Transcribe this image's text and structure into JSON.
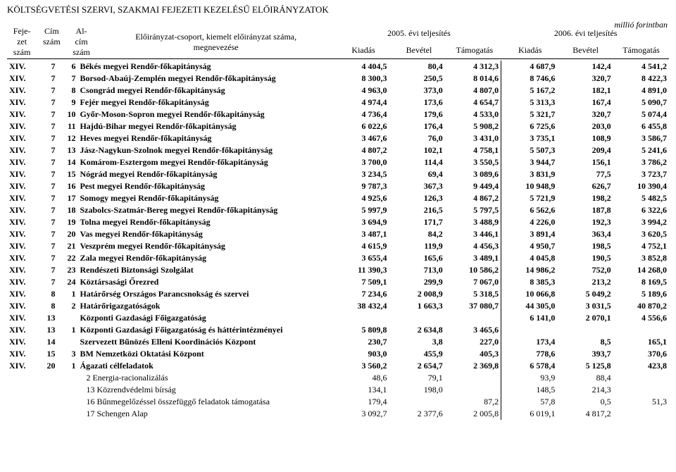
{
  "title": "KÖLTSÉGVETÉSI SZERVI, SZAKMAI FEJEZETI KEZELÉSŰ ELŐIRÁNYZATOK",
  "unit": "millió forintban",
  "head": {
    "fejezet": "Feje-\nzet\nszám",
    "cim": "Cím\nszám",
    "alcim": "Al-\ncím\nszám",
    "name1": "Előirányzat-csoport, kiemelt előirányzat száma,",
    "name2": "megnevezése",
    "y2005": "2005. évi teljesítés",
    "y2006": "2006. évi teljesítés",
    "kiadas": "Kiadás",
    "bevetel": "Bevétel",
    "tamogatas": "Támogatás"
  },
  "rows": [
    {
      "f": "XIV.",
      "c": "7",
      "a": "6",
      "bold": true,
      "name": "Békés megyei Rendőr-főkapitányság",
      "v": [
        "4 404,5",
        "80,4",
        "4 312,3",
        "4 687,9",
        "142,4",
        "4 541,2"
      ]
    },
    {
      "f": "XIV.",
      "c": "7",
      "a": "7",
      "bold": true,
      "name": "Borsod-Abaúj-Zemplén megyei Rendőr-főkapitányság",
      "v": [
        "8 300,3",
        "250,5",
        "8 014,6",
        "8 746,6",
        "320,7",
        "8 422,3"
      ]
    },
    {
      "f": "XIV.",
      "c": "7",
      "a": "8",
      "bold": true,
      "name": "Csongrád megyei Rendőr-főkapitányság",
      "v": [
        "4 963,0",
        "373,0",
        "4 807,0",
        "5 167,2",
        "182,1",
        "4 891,0"
      ]
    },
    {
      "f": "XIV.",
      "c": "7",
      "a": "9",
      "bold": true,
      "name": "Fejér megyei Rendőr-főkapitányság",
      "v": [
        "4 974,4",
        "173,6",
        "4 654,7",
        "5 313,3",
        "167,4",
        "5 090,7"
      ]
    },
    {
      "f": "XIV.",
      "c": "7",
      "a": "10",
      "bold": true,
      "name": "Győr-Moson-Sopron megyei Rendőr-főkapitányság",
      "v": [
        "4 736,4",
        "179,6",
        "4 533,0",
        "5 321,7",
        "320,7",
        "5 074,4"
      ]
    },
    {
      "f": "XIV.",
      "c": "7",
      "a": "11",
      "bold": true,
      "name": "Hajdú-Bihar megyei Rendőr-főkapitányság",
      "v": [
        "6 022,6",
        "176,4",
        "5 908,2",
        "6 725,6",
        "203,0",
        "6 455,8"
      ]
    },
    {
      "f": "XIV.",
      "c": "7",
      "a": "12",
      "bold": true,
      "name": "Heves megyei Rendőr-főkapitányság",
      "v": [
        "3 467,6",
        "76,0",
        "3 431,0",
        "3 735,1",
        "108,9",
        "3 586,7"
      ]
    },
    {
      "f": "XIV.",
      "c": "7",
      "a": "13",
      "bold": true,
      "name": "Jász-Nagykun-Szolnok megyei Rendőr-főkapitányság",
      "v": [
        "4 807,2",
        "102,1",
        "4 758,1",
        "5 507,3",
        "209,4",
        "5 241,6"
      ]
    },
    {
      "f": "XIV.",
      "c": "7",
      "a": "14",
      "bold": true,
      "name": "Komárom-Esztergom megyei Rendőr-főkapitányság",
      "v": [
        "3 700,0",
        "114,4",
        "3 550,5",
        "3 944,7",
        "156,1",
        "3 786,2"
      ]
    },
    {
      "f": "XIV.",
      "c": "7",
      "a": "15",
      "bold": true,
      "name": "Nógrád megyei Rendőr-főkapitányság",
      "v": [
        "3 234,5",
        "69,4",
        "3 089,6",
        "3 831,9",
        "77,5",
        "3 723,7"
      ]
    },
    {
      "f": "XIV.",
      "c": "7",
      "a": "16",
      "bold": true,
      "name": "Pest megyei Rendőr-főkapitányság",
      "v": [
        "9 787,3",
        "367,3",
        "9 449,4",
        "10 948,9",
        "626,7",
        "10 390,4"
      ]
    },
    {
      "f": "XIV.",
      "c": "7",
      "a": "17",
      "bold": true,
      "name": "Somogy megyei Rendőr-főkapitányság",
      "v": [
        "4 925,6",
        "126,3",
        "4 867,2",
        "5 721,9",
        "198,2",
        "5 482,5"
      ]
    },
    {
      "f": "XIV.",
      "c": "7",
      "a": "18",
      "bold": true,
      "name": "Szabolcs-Szatmár-Bereg megyei Rendőr-főkapitányság",
      "v": [
        "5 997,9",
        "216,5",
        "5 797,5",
        "6 562,6",
        "187,8",
        "6 322,6"
      ]
    },
    {
      "f": "XIV.",
      "c": "7",
      "a": "19",
      "bold": true,
      "name": "Tolna megyei Rendőr-főkapitányság",
      "v": [
        "3 694,9",
        "171,7",
        "3 488,9",
        "4 226,0",
        "192,3",
        "3 994,2"
      ]
    },
    {
      "f": "XIV.",
      "c": "7",
      "a": "20",
      "bold": true,
      "name": "Vas megyei Rendőr-főkapitányság",
      "v": [
        "3 487,1",
        "84,2",
        "3 446,1",
        "3 891,4",
        "363,4",
        "3 620,5"
      ]
    },
    {
      "f": "XIV.",
      "c": "7",
      "a": "21",
      "bold": true,
      "name": "Veszprém megyei Rendőr-főkapitányság",
      "v": [
        "4 615,9",
        "119,9",
        "4 456,3",
        "4 950,7",
        "198,5",
        "4 752,1"
      ]
    },
    {
      "f": "XIV.",
      "c": "7",
      "a": "22",
      "bold": true,
      "name": "Zala megyei Rendőr-főkapitányság",
      "v": [
        "3 655,4",
        "165,6",
        "3 489,1",
        "4 045,8",
        "190,5",
        "3 852,8"
      ]
    },
    {
      "f": "XIV.",
      "c": "7",
      "a": "23",
      "bold": true,
      "name": "Rendészeti Biztonsági Szolgálat",
      "v": [
        "11 390,3",
        "713,0",
        "10 586,2",
        "14 986,2",
        "752,0",
        "14 268,0"
      ]
    },
    {
      "f": "XIV.",
      "c": "7",
      "a": "24",
      "bold": true,
      "name": "Köztársasági Őrezred",
      "v": [
        "7 509,1",
        "299,9",
        "7 067,0",
        "8 385,3",
        "213,2",
        "8 169,5"
      ]
    },
    {
      "f": "XIV.",
      "c": "8",
      "a": "1",
      "bold": true,
      "name": "Határőrség Országos Parancsnokság és szervei",
      "v": [
        "7 234,6",
        "2 008,9",
        "5 318,5",
        "10 066,8",
        "5 049,2",
        "5 189,6"
      ]
    },
    {
      "f": "XIV.",
      "c": "8",
      "a": "2",
      "bold": true,
      "name": "Határőrigazgatóságok",
      "v": [
        "38 432,4",
        "1 663,3",
        "37 080,7",
        "44 305,0",
        "3 031,5",
        "40 870,2"
      ]
    },
    {
      "f": "XIV.",
      "c": "13",
      "a": "",
      "bold": true,
      "name": "Központi Gazdasági Főigazgatóság",
      "v": [
        "",
        "",
        "",
        "6 141,0",
        "2 070,1",
        "4 556,6"
      ]
    },
    {
      "f": "XIV.",
      "c": "13",
      "a": "1",
      "bold": true,
      "name": "Központi Gazdasági Főigazgatóság és háttérintézményei",
      "v": [
        "5 809,8",
        "2 634,8",
        "3 465,6",
        "",
        "",
        ""
      ]
    },
    {
      "f": "XIV.",
      "c": "14",
      "a": "",
      "bold": true,
      "name": "Szervezett Bűnözés Elleni Koordinációs Központ",
      "v": [
        "230,7",
        "3,8",
        "227,0",
        "173,4",
        "8,5",
        "165,1"
      ]
    },
    {
      "f": "XIV.",
      "c": "15",
      "a": "3",
      "bold": true,
      "name": "BM Nemzetközi Oktatási Központ",
      "v": [
        "903,0",
        "455,9",
        "405,3",
        "778,6",
        "393,7",
        "370,6"
      ]
    },
    {
      "f": "XIV.",
      "c": "20",
      "a": "1",
      "bold": true,
      "name": "Ágazati célfeladatok",
      "v": [
        "3 560,2",
        "2 654,7",
        "2 369,8",
        "6 578,4",
        "5 125,8",
        "423,8"
      ]
    },
    {
      "f": "",
      "c": "",
      "a": "",
      "bold": false,
      "indent": 1,
      "name": "2 Energia-racionalizálás",
      "v": [
        "48,6",
        "79,1",
        "",
        "93,9",
        "88,4",
        ""
      ]
    },
    {
      "f": "",
      "c": "",
      "a": "",
      "bold": false,
      "indent": 1,
      "name": "13 Közrendvédelmi bírság",
      "v": [
        "134,1",
        "198,0",
        "",
        "148,5",
        "214,3",
        ""
      ]
    },
    {
      "f": "",
      "c": "",
      "a": "",
      "bold": false,
      "indent": 1,
      "name": "16 Bűnmegelőzéssel összefüggő feladatok támogatása",
      "v": [
        "179,4",
        "",
        "87,2",
        "57,8",
        "0,5",
        "51,3"
      ]
    },
    {
      "f": "",
      "c": "",
      "a": "",
      "bold": false,
      "indent": 1,
      "name": "17 Schengen Alap",
      "v": [
        "3 092,7",
        "2 377,6",
        "2 005,8",
        "6 019,1",
        "4 817,2",
        ""
      ]
    }
  ]
}
